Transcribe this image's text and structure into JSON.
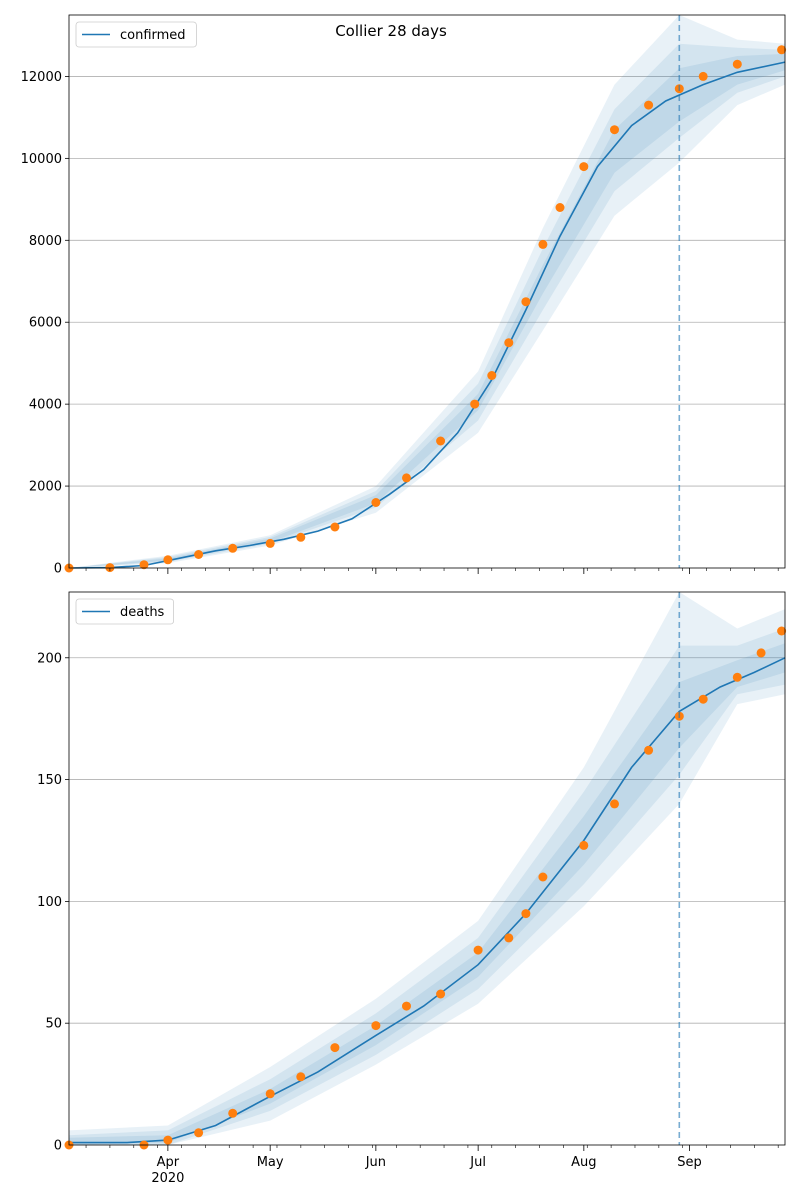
{
  "colors": {
    "model_line": "#1f77b4",
    "observed_points": "#ff7f0e",
    "band": "#1f77b4",
    "grid": "#b0b0b0",
    "forecast_line": "#1f77b4"
  },
  "x_ticks_major": [
    {
      "date": "2020-04-01",
      "label": "Apr",
      "year": "2020"
    },
    {
      "date": "2020-05-01",
      "label": "May",
      "year": ""
    },
    {
      "date": "2020-06-01",
      "label": "Jun",
      "year": ""
    },
    {
      "date": "2020-07-01",
      "label": "Jul",
      "year": ""
    },
    {
      "date": "2020-08-01",
      "label": "Aug",
      "year": ""
    },
    {
      "date": "2020-09-01",
      "label": "Sep",
      "year": ""
    }
  ],
  "forecast_start_date": "2020-08-29",
  "chart_data": [
    {
      "type": "line",
      "title": "Collier 28 days",
      "legend": {
        "entries": [
          "confirmed"
        ],
        "placement": "top-left"
      },
      "grid": "y",
      "xlim": [
        "2020-03-03",
        "2020-09-29"
      ],
      "ylim": [
        0,
        13500
      ],
      "yticks": [
        0,
        2000,
        4000,
        6000,
        8000,
        10000,
        12000
      ],
      "series": [
        {
          "name": "confirmed",
          "kind": "model",
          "x": [
            "2020-03-03",
            "2020-03-15",
            "2020-03-25",
            "2020-04-05",
            "2020-04-15",
            "2020-04-25",
            "2020-05-05",
            "2020-05-15",
            "2020-05-25",
            "2020-06-05",
            "2020-06-15",
            "2020-06-25",
            "2020-07-05",
            "2020-07-15",
            "2020-07-25",
            "2020-08-05",
            "2020-08-15",
            "2020-08-25",
            "2020-09-05",
            "2020-09-15",
            "2020-09-29"
          ],
          "values": [
            0,
            10,
            60,
            250,
            420,
            550,
            700,
            900,
            1200,
            1800,
            2400,
            3300,
            4600,
            6300,
            8100,
            9800,
            10800,
            11400,
            11800,
            12100,
            12350
          ]
        },
        {
          "name": "",
          "kind": "observed",
          "x": [
            "2020-03-03",
            "2020-03-15",
            "2020-03-25",
            "2020-04-01",
            "2020-04-10",
            "2020-04-20",
            "2020-05-01",
            "2020-05-10",
            "2020-05-20",
            "2020-06-01",
            "2020-06-10",
            "2020-06-20",
            "2020-06-30",
            "2020-07-05",
            "2020-07-10",
            "2020-07-15",
            "2020-07-20",
            "2020-07-25",
            "2020-08-01",
            "2020-08-10",
            "2020-08-20",
            "2020-08-29",
            "2020-09-05",
            "2020-09-15",
            "2020-09-28"
          ],
          "values": [
            0,
            10,
            80,
            200,
            330,
            480,
            600,
            750,
            1000,
            1600,
            2200,
            3100,
            4000,
            4700,
            5500,
            6500,
            7900,
            8800,
            9800,
            10700,
            11300,
            11700,
            12000,
            12300,
            12650
          ]
        }
      ],
      "bands": [
        {
          "x": [
            "2020-03-03",
            "2020-04-01",
            "2020-05-01",
            "2020-06-01",
            "2020-07-01",
            "2020-07-20",
            "2020-08-10",
            "2020-08-29",
            "2020-09-15",
            "2020-09-29"
          ],
          "lower": [
            0,
            120,
            550,
            1350,
            3300,
            5800,
            8600,
            9900,
            11300,
            11800
          ],
          "upper": [
            0,
            300,
            800,
            2000,
            4800,
            8300,
            11800,
            13500,
            12900,
            12800
          ]
        },
        {
          "x": [
            "2020-03-03",
            "2020-04-01",
            "2020-05-01",
            "2020-06-01",
            "2020-07-01",
            "2020-07-20",
            "2020-08-10",
            "2020-08-29",
            "2020-09-15",
            "2020-09-29"
          ],
          "lower": [
            0,
            150,
            590,
            1480,
            3600,
            6300,
            9200,
            10500,
            11600,
            12000
          ],
          "upper": [
            0,
            270,
            760,
            1880,
            4500,
            7800,
            11200,
            12800,
            12700,
            12650
          ]
        },
        {
          "x": [
            "2020-03-03",
            "2020-04-01",
            "2020-05-01",
            "2020-06-01",
            "2020-07-01",
            "2020-07-20",
            "2020-08-10",
            "2020-08-29",
            "2020-09-15",
            "2020-09-29"
          ],
          "lower": [
            0,
            180,
            630,
            1580,
            3850,
            6700,
            9650,
            10900,
            11800,
            12150
          ],
          "upper": [
            0,
            240,
            720,
            1780,
            4250,
            7400,
            10700,
            12200,
            12500,
            12550
          ]
        }
      ]
    },
    {
      "type": "line",
      "title": "",
      "legend": {
        "entries": [
          "deaths"
        ],
        "placement": "top-left"
      },
      "grid": "y",
      "xlim": [
        "2020-03-03",
        "2020-09-29"
      ],
      "ylim": [
        0,
        227
      ],
      "yticks": [
        0,
        50,
        100,
        150,
        200
      ],
      "series": [
        {
          "name": "deaths",
          "kind": "model",
          "x": [
            "2020-03-03",
            "2020-03-20",
            "2020-04-01",
            "2020-04-15",
            "2020-05-01",
            "2020-05-15",
            "2020-06-01",
            "2020-06-15",
            "2020-07-01",
            "2020-07-15",
            "2020-08-01",
            "2020-08-15",
            "2020-08-29",
            "2020-09-10",
            "2020-09-20",
            "2020-09-29"
          ],
          "values": [
            1,
            1,
            2,
            8,
            20,
            30,
            45,
            57,
            74,
            95,
            125,
            155,
            178,
            188,
            194,
            200
          ]
        },
        {
          "name": "",
          "kind": "observed",
          "x": [
            "2020-03-03",
            "2020-03-25",
            "2020-04-01",
            "2020-04-10",
            "2020-04-20",
            "2020-05-01",
            "2020-05-10",
            "2020-05-20",
            "2020-06-01",
            "2020-06-10",
            "2020-06-20",
            "2020-07-01",
            "2020-07-10",
            "2020-07-15",
            "2020-07-20",
            "2020-08-01",
            "2020-08-10",
            "2020-08-20",
            "2020-08-29",
            "2020-09-05",
            "2020-09-15",
            "2020-09-22",
            "2020-09-28"
          ],
          "values": [
            0,
            0,
            2,
            5,
            13,
            21,
            28,
            40,
            49,
            57,
            62,
            80,
            85,
            95,
            110,
            123,
            140,
            162,
            176,
            183,
            192,
            202,
            211
          ]
        }
      ],
      "bands": [
        {
          "x": [
            "2020-03-03",
            "2020-04-01",
            "2020-05-01",
            "2020-06-01",
            "2020-07-01",
            "2020-08-01",
            "2020-08-29",
            "2020-09-15",
            "2020-09-29"
          ],
          "lower": [
            0,
            0,
            10,
            33,
            58,
            98,
            140,
            181,
            185
          ],
          "upper": [
            6,
            8,
            32,
            60,
            92,
            155,
            227,
            212,
            220
          ]
        },
        {
          "x": [
            "2020-03-03",
            "2020-04-01",
            "2020-05-01",
            "2020-06-01",
            "2020-07-01",
            "2020-08-01",
            "2020-08-29",
            "2020-09-15",
            "2020-09-29"
          ],
          "lower": [
            0,
            0,
            14,
            37,
            64,
            107,
            152,
            185,
            189
          ],
          "upper": [
            4,
            6,
            27,
            54,
            85,
            145,
            205,
            205,
            212
          ]
        },
        {
          "x": [
            "2020-03-03",
            "2020-04-01",
            "2020-05-01",
            "2020-06-01",
            "2020-07-01",
            "2020-08-01",
            "2020-08-29",
            "2020-09-15",
            "2020-09-29"
          ],
          "lower": [
            0,
            1,
            17,
            41,
            69,
            115,
            163,
            188,
            194
          ],
          "upper": [
            3,
            4,
            23,
            49,
            79,
            135,
            190,
            199,
            206
          ]
        }
      ]
    }
  ]
}
